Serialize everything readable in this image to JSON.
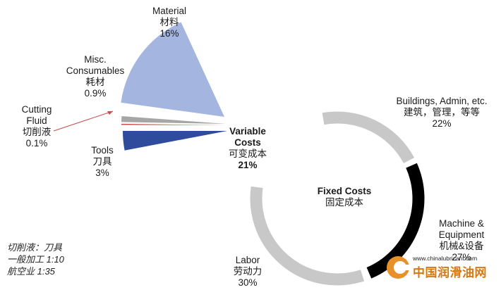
{
  "chart_data": [
    {
      "type": "pie",
      "title": "Variable Costs",
      "title_cn": "可变成本",
      "total_percent": "21%",
      "slices": [
        {
          "name": "Material",
          "name_cn": "材料",
          "value": 16,
          "label": "16%",
          "color": "#a4b6e0"
        },
        {
          "name": "Misc. Consumables",
          "name_cn": "耗材",
          "value": 0.9,
          "label": "0.9%",
          "color": "#a6a6a6"
        },
        {
          "name": "Cutting Fluid",
          "name_cn": "切削液",
          "value": 0.1,
          "label": "0.1%",
          "color": "#c0504d"
        },
        {
          "name": "Tools",
          "name_cn": "刀具",
          "value": 3,
          "label": "3%",
          "color": "#2f4b9b"
        }
      ]
    },
    {
      "type": "pie",
      "title": "Fixed Costs",
      "title_cn": "固定成本",
      "slices": [
        {
          "name": "Buildings, Admin, etc.",
          "name_cn": "建筑，管理，等等",
          "value": 22,
          "label": "22%",
          "color": "#c8c8c8"
        },
        {
          "name": "Machine & Equipment",
          "name_cn": "机械&设备",
          "value": 27,
          "label": "27%",
          "color": "#000000"
        },
        {
          "name": "Labor",
          "name_cn": "劳动力",
          "value": 30,
          "label": "30%",
          "color": "#c8c8c8"
        }
      ]
    }
  ],
  "labels": {
    "material": {
      "en": "Material",
      "cn": "材料",
      "pct": "16%"
    },
    "misc": {
      "en1": "Misc.",
      "en2": "Consumables",
      "cn": "耗材",
      "pct": "0.9%"
    },
    "cutting": {
      "en1": "Cutting",
      "en2": "Fluid",
      "cn": "切削液",
      "pct": "0.1%"
    },
    "tools": {
      "en": "Tools",
      "cn": "刀具",
      "pct": "3%"
    },
    "variable": {
      "en1": "Variable",
      "en2": "Costs",
      "cn": "可变成本",
      "pct": "21%"
    },
    "fixed": {
      "en": "Fixed Costs",
      "cn": "固定成本"
    },
    "buildings": {
      "en": "Buildings, Admin, etc.",
      "cn": "建筑，管理，等等",
      "pct": "22%"
    },
    "machine": {
      "en1": "Machine &",
      "en2": "Equipment",
      "cn": "机械&设备",
      "pct": "27%"
    },
    "labor": {
      "en": "Labor",
      "cn": "劳动力",
      "pct": "30%"
    }
  },
  "note": {
    "line1": "切削液：刀具",
    "line2": "一般加工 1:10",
    "line3": "航空业 1:35"
  },
  "watermark": {
    "url": "www.chinalubricant.com",
    "name": "中国润滑油网"
  }
}
